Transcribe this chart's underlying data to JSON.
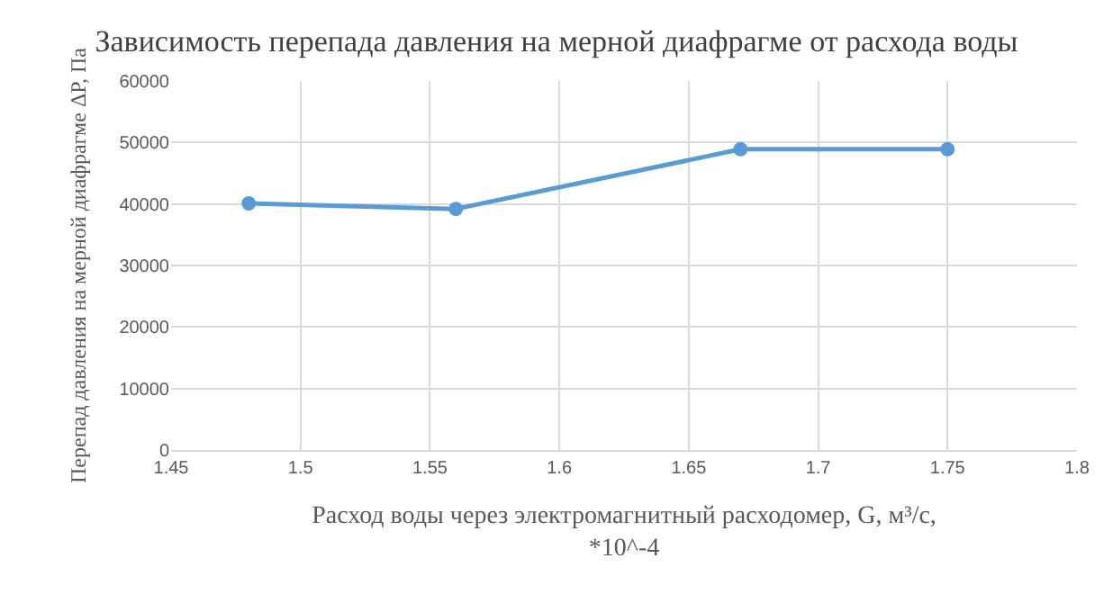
{
  "chart_data": {
    "type": "line",
    "title": "Зависимость перепада давления на мерной диафрагме от расхода воды",
    "xlabel": "Расход воды через электромагнитный расходомер, G, м³/с, *10^-4",
    "ylabel": "Перепад давления на мерной диафрагме ΔP, Па",
    "x": [
      1.48,
      1.56,
      1.67,
      1.75
    ],
    "series": [
      {
        "color": "#5b9bd5",
        "values": [
          40100,
          39200,
          48900,
          48900
        ]
      }
    ],
    "xlim": [
      1.45,
      1.8
    ],
    "xticks": [
      1.45,
      1.5,
      1.55,
      1.6,
      1.65,
      1.7,
      1.75,
      1.8
    ],
    "ylim": [
      0,
      60000
    ],
    "yticks": [
      0,
      10000,
      20000,
      30000,
      40000,
      50000,
      60000
    ],
    "grid": true,
    "marker": "circle",
    "line_style": "solid"
  }
}
